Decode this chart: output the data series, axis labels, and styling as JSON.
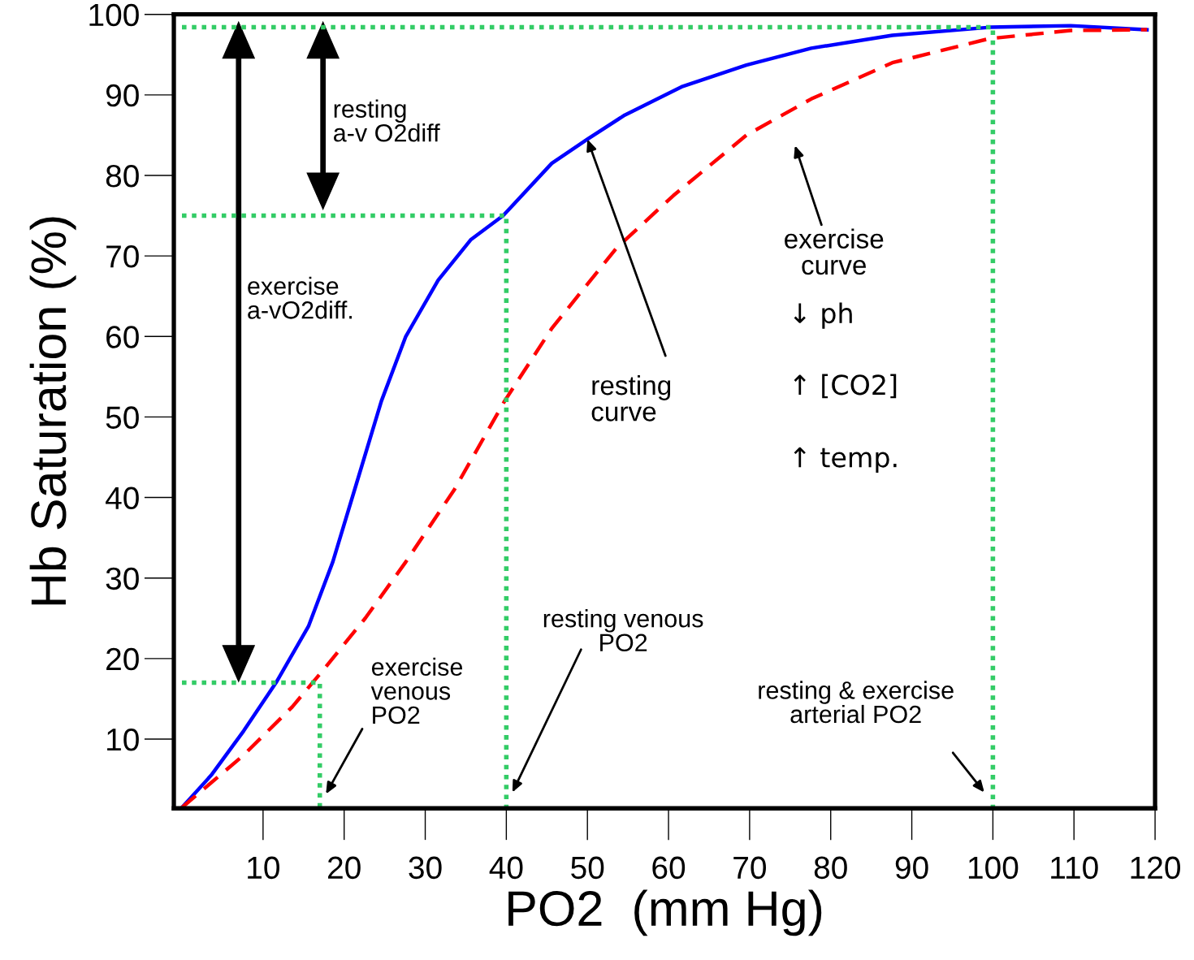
{
  "chart_data": {
    "type": "line",
    "xlabel": "PO2  (mm Hg)",
    "ylabel": "Hb Saturation (%)",
    "xlim": [
      -1,
      120
    ],
    "ylim": [
      1.4,
      100
    ],
    "xticks": [
      10,
      20,
      30,
      40,
      50,
      60,
      70,
      80,
      90,
      100,
      110,
      120
    ],
    "yticks": [
      10,
      20,
      30,
      40,
      50,
      60,
      70,
      80,
      90,
      100
    ],
    "grid": false,
    "legend": false,
    "marker": "none",
    "series": [
      {
        "line_style": "solid",
        "color": "#0000ff",
        "x": [
          0,
          3.6,
          7.6,
          11.6,
          15.6,
          18.6,
          21.6,
          24.6,
          27.6,
          31.6,
          35.6,
          39.6,
          45.6,
          50,
          54.6,
          61.6,
          69.6,
          77.6,
          87.6,
          99.6,
          109.6,
          119
        ],
        "values": [
          1.5,
          5.5,
          11,
          17,
          24,
          32,
          42,
          52,
          60,
          67,
          72,
          75,
          81.5,
          84.5,
          87.5,
          91,
          93.7,
          95.8,
          97.4,
          98.4,
          98.6,
          98.1
        ]
      },
      {
        "line_style": "dashed",
        "color": "#ff0000",
        "x": [
          0,
          7.6,
          13.6,
          17.6,
          22.6,
          27.6,
          33.6,
          39.8,
          45.6,
          53.6,
          60.6,
          69.6,
          77.6,
          87.6,
          99.6,
          109.6,
          119
        ],
        "values": [
          1.5,
          8,
          14,
          18.8,
          25,
          32,
          41,
          52,
          61,
          71,
          77.5,
          85,
          89.5,
          94,
          97,
          98,
          98.1
        ]
      },
      {
        "line_style": "dotted",
        "color": "#33cc66",
        "x": [
          0,
          100,
          100
        ],
        "values": [
          98.4,
          98.4,
          1.4
        ]
      },
      {
        "line_style": "dotted",
        "color": "#33cc66",
        "x": [
          0,
          40,
          40
        ],
        "values": [
          75,
          75,
          1.4
        ]
      },
      {
        "line_style": "dotted",
        "color": "#33cc66",
        "x": [
          0,
          17,
          17
        ],
        "values": [
          17,
          17,
          1.4
        ]
      }
    ],
    "annotations": [
      "resting\na-v O2diff",
      "exercise\na-vO2diff.",
      {
        "text": "resting\ncurve",
        "x": 50,
        "y": 84.5
      },
      "exercise\ncurve",
      "↓ ph",
      "↑ [CO2]",
      "↑ temp.",
      "exercise\nvenous\nPO2",
      "resting venous\nPO2",
      "resting & exercise\narterial PO2"
    ]
  }
}
